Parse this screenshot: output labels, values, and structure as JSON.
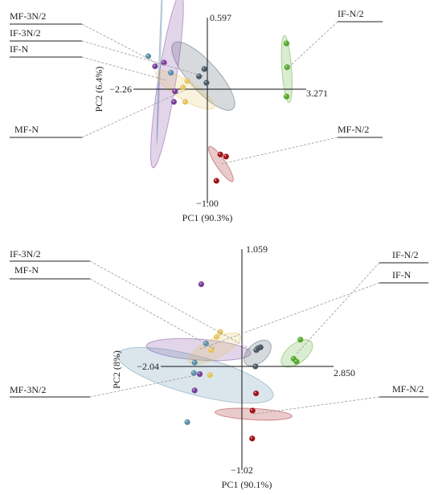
{
  "colors": {
    "MF-N": "#e4c45e",
    "MF-N/2": "#a11217",
    "MF-3N/2": "#5a8fa9",
    "IF-N": "#7a3f9e",
    "IF-N/2": "#56a82e",
    "IF-3N/2": "#4a5865"
  },
  "chart_data": [
    {
      "type": "scatter",
      "xlabel": "PC1 (90.3%)",
      "ylabel": "PC2 (6.4%)",
      "xlim": [
        -2.26,
        3.271
      ],
      "ylim": [
        -1.0,
        0.597
      ],
      "tick_labels": {
        "x_min": "−2.26",
        "x_max": "3.271",
        "y_min": "−1.00",
        "y_max": "0.597"
      },
      "series": [
        {
          "name": "MF-3N/2",
          "points": [
            [
              -1.98,
              0.36
            ],
            [
              -1.22,
              0.18
            ]
          ]
        },
        {
          "name": "IF-3N/2",
          "points": [
            [
              -0.1,
              0.22
            ],
            [
              -0.28,
              0.14
            ],
            [
              -0.03,
              0.07
            ]
          ]
        },
        {
          "name": "IF-N",
          "points": [
            [
              -1.45,
              0.29
            ],
            [
              -1.75,
              0.25
            ],
            [
              -1.08,
              -0.02
            ],
            [
              -1.12,
              -0.12
            ]
          ]
        },
        {
          "name": "MF-N",
          "points": [
            [
              -0.67,
              0.09
            ],
            [
              -0.82,
              0.02
            ],
            [
              -0.74,
              -0.12
            ]
          ]
        },
        {
          "name": "IF-N/2",
          "points": [
            [
              2.62,
              0.5
            ],
            [
              2.64,
              0.24
            ],
            [
              2.62,
              -0.07
            ]
          ]
        },
        {
          "name": "MF-N/2",
          "points": [
            [
              0.43,
              -0.62
            ],
            [
              0.62,
              -0.64
            ],
            [
              0.3,
              -0.87
            ]
          ]
        }
      ],
      "legend_labels": [
        {
          "label": "MF-3N/2",
          "side": "left"
        },
        {
          "label": "IF-3N/2",
          "side": "left"
        },
        {
          "label": "IF-N",
          "side": "left"
        },
        {
          "label": "MF-N",
          "side": "left"
        },
        {
          "label": "IF-N/2",
          "side": "right"
        },
        {
          "label": "MF-N/2",
          "side": "right"
        }
      ]
    },
    {
      "type": "scatter",
      "xlabel": "PC1 (90.1%)",
      "ylabel": "PC2 (8%)",
      "xlim": [
        -2.04,
        2.85
      ],
      "ylim": [
        -1.02,
        1.059
      ],
      "tick_labels": {
        "x_min": "−2.04",
        "x_max": "2.850",
        "y_min": "−1.02",
        "y_max": "1.059"
      },
      "series": [
        {
          "name": "IF-N",
          "points": [
            [
              -1.11,
              0.86
            ],
            [
              -1.15,
              -0.08
            ],
            [
              -1.29,
              -0.25
            ]
          ]
        },
        {
          "name": "MF-3N/2",
          "points": [
            [
              -0.98,
              0.24
            ],
            [
              -1.29,
              0.04
            ],
            [
              -1.31,
              -0.07
            ],
            [
              -1.49,
              -0.58
            ]
          ]
        },
        {
          "name": "MF-N",
          "points": [
            [
              -0.59,
              0.36
            ],
            [
              -0.69,
              0.31
            ],
            [
              -0.84,
              0.17
            ],
            [
              -0.87,
              -0.09
            ]
          ]
        },
        {
          "name": "IF-3N/2",
          "points": [
            [
              0.58,
              0.2
            ],
            [
              0.5,
              0.19
            ],
            [
              0.45,
              0.17
            ],
            [
              0.42,
              0.0
            ]
          ]
        },
        {
          "name": "IF-N/2",
          "points": [
            [
              1.82,
              0.28
            ],
            [
              1.61,
              0.08
            ],
            [
              1.7,
              0.05
            ]
          ]
        },
        {
          "name": "MF-N/2",
          "points": [
            [
              0.44,
              -0.28
            ],
            [
              0.33,
              -0.46
            ],
            [
              0.32,
              -0.75
            ]
          ]
        }
      ],
      "legend_labels": [
        {
          "label": "IF-3N/2",
          "side": "left"
        },
        {
          "label": "MF-N",
          "side": "left"
        },
        {
          "label": "MF-3N/2",
          "side": "left"
        },
        {
          "label": "IF-N/2",
          "side": "right"
        },
        {
          "label": "IF-N",
          "side": "right"
        },
        {
          "label": "MF-N/2",
          "side": "right"
        }
      ]
    }
  ]
}
